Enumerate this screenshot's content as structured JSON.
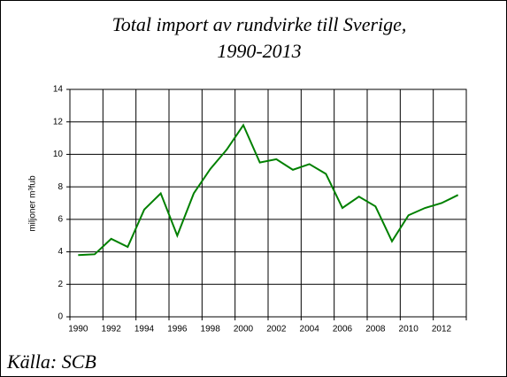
{
  "chart_data": {
    "type": "line",
    "title": [
      "Total import av rundvirke till Sverige,",
      "1990-2013"
    ],
    "y_label": "miljoner m³fub",
    "source": "Källa: SCB",
    "categories": [
      1990,
      null,
      1992,
      null,
      1994,
      null,
      1996,
      null,
      1998,
      null,
      2000,
      null,
      2002,
      null,
      2004,
      null,
      2006,
      null,
      2008,
      null,
      2010,
      null,
      2012,
      null
    ],
    "series": [
      {
        "name": "Total import",
        "color": "#008000",
        "values": [
          3.8,
          3.85,
          4.8,
          4.3,
          6.6,
          7.6,
          5.0,
          7.6,
          9.1,
          10.3,
          11.8,
          9.5,
          9.7,
          9.05,
          9.4,
          8.8,
          6.7,
          7.4,
          6.8,
          4.65,
          6.25,
          6.7,
          7.0,
          7.5
        ]
      }
    ],
    "ylim": [
      0,
      14
    ],
    "yticks": [
      0,
      2,
      4,
      6,
      8,
      10,
      12,
      14
    ],
    "grid": true
  }
}
